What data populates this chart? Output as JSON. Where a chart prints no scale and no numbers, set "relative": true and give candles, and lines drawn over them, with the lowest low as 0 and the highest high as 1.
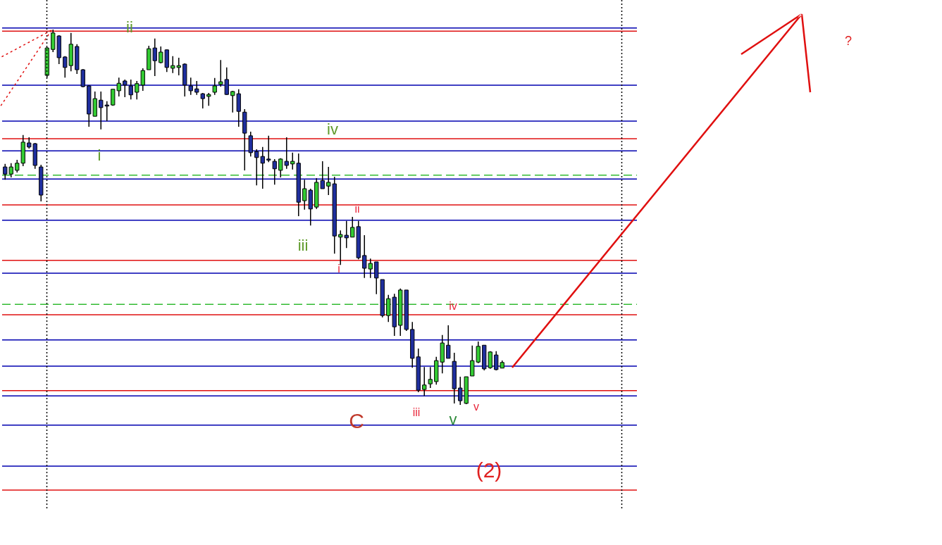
{
  "chart_data": {
    "type": "candlestick",
    "relative": true,
    "categories": [
      null,
      null,
      null,
      null,
      null,
      null,
      null,
      null,
      null,
      null,
      null,
      null,
      null,
      null,
      null,
      null,
      null,
      null,
      null,
      null,
      null,
      null,
      null,
      null,
      null,
      null,
      null,
      null,
      null,
      null,
      null,
      null,
      null,
      null,
      null,
      null,
      null,
      null,
      null,
      null,
      null,
      null,
      null,
      null,
      null,
      null,
      null,
      null,
      null,
      null,
      null,
      null,
      null,
      null,
      null,
      null,
      null,
      null,
      null,
      null,
      null,
      null,
      null,
      null,
      null,
      null,
      null,
      null,
      null,
      null,
      null,
      null,
      null,
      null,
      null,
      null,
      null,
      null,
      null,
      null,
      null,
      null,
      null,
      null,
      null,
      null,
      null,
      null,
      null,
      null,
      null,
      null,
      null,
      null,
      null,
      null,
      null,
      null,
      null,
      null,
      null,
      null,
      null,
      null,
      null,
      null
    ],
    "ohlc": [
      [
        0.634,
        0.642,
        0.6,
        0.615
      ],
      [
        0.615,
        0.644,
        0.606,
        0.634
      ],
      [
        0.625,
        0.653,
        0.619,
        0.644
      ],
      [
        0.644,
        0.719,
        0.636,
        0.7
      ],
      [
        0.698,
        0.713,
        0.683,
        0.687
      ],
      [
        0.696,
        0.698,
        0.629,
        0.638
      ],
      [
        0.634,
        0.64,
        0.542,
        0.559
      ],
      [
        0.878,
        0.953,
        0.872,
        0.951
      ],
      [
        0.947,
        1,
        0.94,
        0.991
      ],
      [
        0.983,
        0.985,
        0.908,
        0.925
      ],
      [
        0.927,
        0.929,
        0.872,
        0.899
      ],
      [
        0.904,
        0.991,
        0.889,
        0.961
      ],
      [
        0.955,
        0.961,
        0.882,
        0.893
      ],
      [
        0.893,
        0.895,
        0.846,
        0.848
      ],
      [
        0.85,
        0.852,
        0.741,
        0.775
      ],
      [
        0.769,
        0.835,
        0.769,
        0.816
      ],
      [
        0.812,
        0.835,
        0.734,
        0.792
      ],
      [
        0.799,
        0.809,
        0.756,
        0.797
      ],
      [
        0.799,
        0.841,
        0.797,
        0.841
      ],
      [
        0.837,
        0.872,
        0.822,
        0.857
      ],
      [
        0.863,
        0.867,
        0.82,
        0.852
      ],
      [
        0.85,
        0.867,
        0.814,
        0.826
      ],
      [
        0.833,
        0.863,
        0.814,
        0.856
      ],
      [
        0.852,
        0.897,
        0.837,
        0.891
      ],
      [
        0.893,
        0.957,
        0.893,
        0.949
      ],
      [
        0.951,
        0.976,
        0.876,
        0.917
      ],
      [
        0.912,
        0.955,
        0.91,
        0.94
      ],
      [
        0.946,
        0.947,
        0.887,
        0.899
      ],
      [
        0.897,
        0.929,
        0.884,
        0.904
      ],
      [
        0.899,
        0.925,
        0.878,
        0.904
      ],
      [
        0.908,
        0.91,
        0.822,
        0.852
      ],
      [
        0.85,
        0.872,
        0.826,
        0.837
      ],
      [
        0.842,
        0.863,
        0.826,
        0.833
      ],
      [
        0.829,
        0.831,
        0.79,
        0.816
      ],
      [
        0.822,
        0.831,
        0.797,
        0.827
      ],
      [
        0.833,
        0.871,
        0.826,
        0.85
      ],
      [
        0.854,
        0.919,
        0.848,
        0.861
      ],
      [
        0.867,
        0.899,
        0.826,
        0.827
      ],
      [
        0.824,
        0.837,
        0.779,
        0.835
      ],
      [
        0.829,
        0.841,
        0.741,
        0.782
      ],
      [
        0.78,
        0.788,
        0.625,
        0.724
      ],
      [
        0.717,
        0.728,
        0.662,
        0.672
      ],
      [
        0.675,
        0.681,
        0.585,
        0.659
      ],
      [
        0.662,
        0.687,
        0.576,
        0.644
      ],
      [
        0.655,
        0.717,
        0.647,
        0.653
      ],
      [
        0.649,
        0.655,
        0.587,
        0.629
      ],
      [
        0.625,
        0.657,
        0.606,
        0.655
      ],
      [
        0.649,
        0.713,
        0.629,
        0.638
      ],
      [
        0.642,
        0.672,
        0.627,
        0.649
      ],
      [
        0.644,
        0.67,
        0.503,
        0.54
      ],
      [
        0.544,
        0.6,
        0.52,
        0.576
      ],
      [
        0.572,
        0.576,
        0.478,
        0.522
      ],
      [
        0.527,
        0.604,
        0.522,
        0.593
      ],
      [
        0.598,
        0.649,
        0.576,
        0.576
      ],
      [
        0.583,
        0.634,
        0.559,
        0.593
      ],
      [
        0.589,
        0.608,
        0.403,
        0.45
      ],
      [
        0.447,
        0.465,
        0.373,
        0.454
      ],
      [
        0.452,
        0.49,
        0.418,
        0.445
      ],
      [
        0.447,
        0.501,
        0.447,
        0.473
      ],
      [
        0.475,
        0.49,
        0.388,
        0.392
      ],
      [
        0.398,
        0.452,
        0.338,
        0.364
      ],
      [
        0.362,
        0.39,
        0.338,
        0.377
      ],
      [
        0.381,
        0.381,
        0.295,
        0.338
      ],
      [
        0.334,
        0.334,
        0.233,
        0.238
      ],
      [
        0.238,
        0.293,
        0.221,
        0.283
      ],
      [
        0.287,
        0.296,
        0.184,
        0.208
      ],
      [
        0.212,
        0.31,
        0.184,
        0.306
      ],
      [
        0.306,
        0.306,
        0.197,
        0.201
      ],
      [
        0.201,
        0.221,
        0.099,
        0.124
      ],
      [
        0.128,
        0.15,
        0.034,
        0.039
      ],
      [
        0.041,
        0.101,
        0.024,
        0.053
      ],
      [
        0.056,
        0.101,
        0.045,
        0.068
      ],
      [
        0.062,
        0.128,
        0.054,
        0.118
      ],
      [
        0.114,
        0.186,
        0.084,
        0.165
      ],
      [
        0.159,
        0.212,
        0.124,
        0.124
      ],
      [
        0.116,
        0.139,
        0.004,
        0.043
      ],
      [
        0.045,
        0.075,
        0,
        0.011
      ],
      [
        0.004,
        0.075,
        0.002,
        0.075
      ],
      [
        0.077,
        0.158,
        0.077,
        0.118
      ],
      [
        0.114,
        0.169,
        0.111,
        0.156
      ],
      [
        0.159,
        0.159,
        0.092,
        0.096
      ],
      [
        0.099,
        0.143,
        0.096,
        0.141
      ],
      [
        0.133,
        0.143,
        0.092,
        0.094
      ],
      [
        0.098,
        0.118,
        0.098,
        0.113
      ],
      null,
      null,
      null,
      null,
      null,
      null,
      null,
      null,
      null,
      null,
      null,
      null,
      null,
      null,
      null,
      null,
      null,
      null,
      null,
      null,
      null,
      null
    ],
    "colors": [
      "#1f2f9f",
      "#33cc33",
      "#33cc33",
      "#33cc33",
      "#1f2f9f",
      "#1f2f9f",
      "#1f2f9f",
      "#33cc33",
      "#33cc33",
      "#1f2f9f",
      "#1f2f9f",
      "#33cc33",
      "#1f2f9f",
      "#1f2f9f",
      "#1f2f9f",
      "#33cc33",
      "#1f2f9f",
      "#1f2f9f",
      "#33cc33",
      "#33cc33",
      "#1f2f9f",
      "#1f2f9f",
      "#33cc33",
      "#33cc33",
      "#33cc33",
      "#1f2f9f",
      "#33cc33",
      "#1f2f9f",
      "#33cc33",
      "#33cc33",
      "#1f2f9f",
      "#1f2f9f",
      "#1f2f9f",
      "#1f2f9f",
      "#33cc33",
      "#33cc33",
      "#33cc33",
      "#1f2f9f",
      "#33cc33",
      "#1f2f9f",
      "#1f2f9f",
      "#1f2f9f",
      "#1f2f9f",
      "#1f2f9f",
      "#1f2f9f",
      "#1f2f9f",
      "#33cc33",
      "#1f2f9f",
      "#33cc33",
      "#1f2f9f",
      "#33cc33",
      "#1f2f9f",
      "#33cc33",
      "#1f2f9f",
      "#33cc33",
      "#1f2f9f",
      "#33cc33",
      "#1f2f9f",
      "#33cc33",
      "#1f2f9f",
      "#1f2f9f",
      "#33cc33",
      "#1f2f9f",
      "#1f2f9f",
      "#33cc33",
      "#1f2f9f",
      "#33cc33",
      "#1f2f9f",
      "#1f2f9f",
      "#1f2f9f",
      "#33cc33",
      "#33cc33",
      "#33cc33",
      "#33cc33",
      "#1f2f9f",
      "#1f2f9f",
      "#1f2f9f",
      "#33cc33",
      "#33cc33",
      "#33cc33",
      "#1f2f9f",
      "#33cc33",
      "#1f2f9f",
      "#33cc33",
      null,
      null,
      null,
      null,
      null,
      null,
      null,
      null,
      null,
      null,
      null,
      null,
      null,
      null,
      null,
      null,
      null,
      null,
      null,
      null,
      null,
      null
    ],
    "ref_lines": [
      {
        "axis": "y",
        "value": 1.004,
        "color": "#0000b0"
      },
      {
        "axis": "y",
        "value": 0.996,
        "color": "#e01010"
      },
      {
        "axis": "y",
        "value": 0.852,
        "color": "#0000b0"
      },
      {
        "axis": "y",
        "value": 0.756,
        "color": "#0000b0"
      },
      {
        "axis": "y",
        "value": 0.709,
        "color": "#e01010"
      },
      {
        "axis": "y",
        "value": 0.677,
        "color": "#0000b0"
      },
      {
        "axis": "y",
        "value": 0.612,
        "color": "#33bb33",
        "line_style": "dashed"
      },
      {
        "axis": "y",
        "value": 0.602,
        "color": "#0000b0"
      },
      {
        "axis": "y",
        "value": 0.533,
        "color": "#e01010"
      },
      {
        "axis": "y",
        "value": 0.492,
        "color": "#0000b0"
      },
      {
        "axis": "y",
        "value": 0.385,
        "color": "#e01010"
      },
      {
        "axis": "y",
        "value": 0.351,
        "color": "#0000b0"
      },
      {
        "axis": "y",
        "value": 0.268,
        "color": "#33bb33",
        "line_style": "dashed"
      },
      {
        "axis": "y",
        "value": 0.24,
        "color": "#e01010"
      },
      {
        "axis": "y",
        "value": 0.173,
        "color": "#0000b0"
      },
      {
        "axis": "y",
        "value": 0.103,
        "color": "#0000b0"
      },
      {
        "axis": "y",
        "value": 0.038,
        "color": "#e01010"
      },
      {
        "axis": "y",
        "value": 0.024,
        "color": "#0000b0"
      },
      {
        "axis": "y",
        "value": -0.054,
        "color": "#0000b0"
      },
      {
        "axis": "y",
        "value": -0.163,
        "color": "#0000b0"
      },
      {
        "axis": "y",
        "value": -0.227,
        "color": "#e01010"
      }
    ],
    "annotations": [
      "ii",
      "i",
      "iv",
      "iii",
      "v",
      "C",
      "(2)",
      "ii",
      "i",
      "iv",
      "iii",
      "v",
      "?"
    ]
  }
}
